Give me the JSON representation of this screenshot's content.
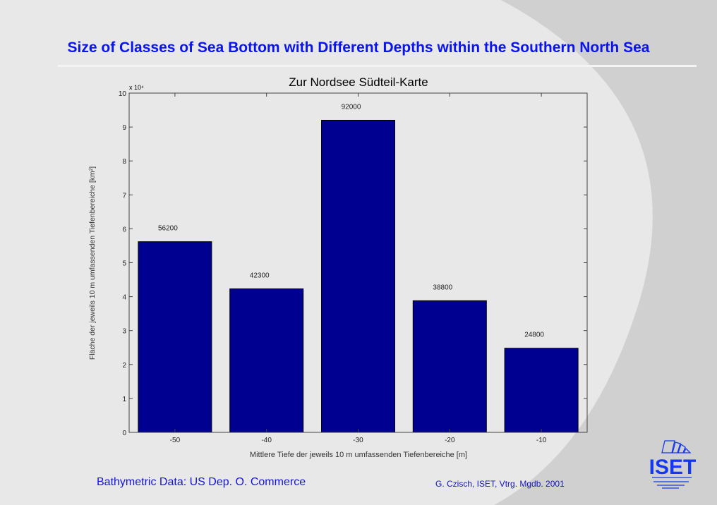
{
  "slide_title": "Size of Classes of Sea Bottom with Different Depths within the Southern North Sea",
  "footer_left": "Bathymetric Data: US Dep. O. Commerce",
  "footer_right": "G. Czisch, ISET, Vtrg. Mgdb. 2001",
  "logo_text": "ISET",
  "colors": {
    "bar": "#000090",
    "title": "#0a14f0"
  },
  "chart_data": {
    "type": "bar",
    "title": "Zur Nordsee Südteil-Karte",
    "xlabel": "Mittlere Tiefe der jeweils 10 m umfassenden Tiefenbereiche [m]",
    "ylabel": "Fläche der jeweils 10 m umfassenden Tiefenbereiche [km²]",
    "y_multiplier": "x 10⁴",
    "categories": [
      "-50",
      "-40",
      "-30",
      "-20",
      "-10"
    ],
    "x": [
      -50,
      -40,
      -30,
      -20,
      -10
    ],
    "values": [
      56200,
      42300,
      92000,
      38800,
      24800
    ],
    "data_labels": [
      "56200",
      "42300",
      "92000",
      "38800",
      "24800"
    ],
    "xlim": [
      -55,
      -5
    ],
    "ylim": [
      0,
      100000
    ],
    "yticks": [
      "0",
      "1",
      "2",
      "3",
      "4",
      "5",
      "6",
      "7",
      "8",
      "9",
      "10"
    ],
    "grid": false
  }
}
